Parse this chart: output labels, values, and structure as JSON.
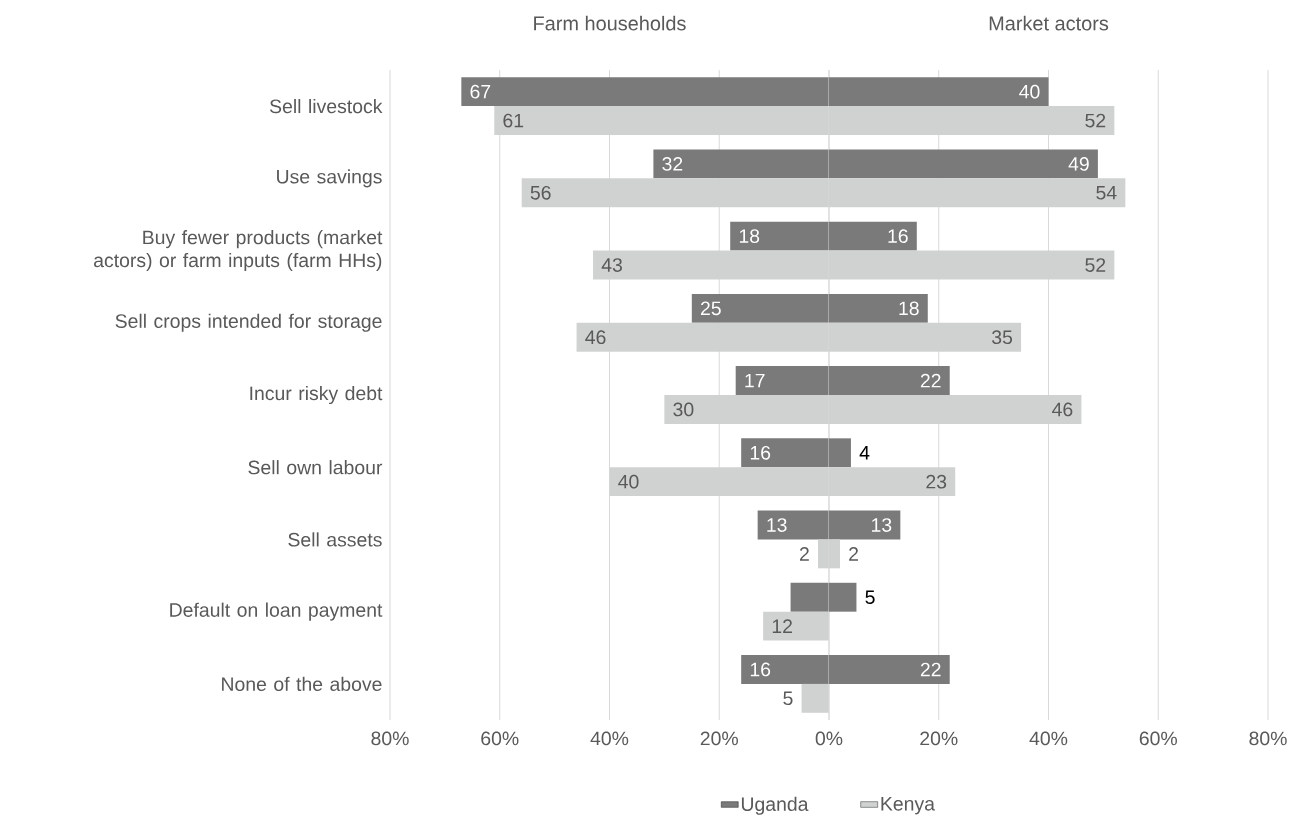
{
  "chart_data": [
    {
      "type": "bar",
      "orientation": "horizontal",
      "title": "Farm households",
      "categories": [
        "Sell livestock",
        "Use savings",
        "Buy fewer products (market actors) or farm inputs (farm HHs)",
        "Sell crops intended for storage",
        "Incur risky debt",
        "Sell own labour",
        "Sell assets",
        "Default on loan payment",
        "None of the above"
      ],
      "series": [
        {
          "color": "#7a7a7a",
          "values": [
            67,
            32,
            18,
            25,
            17,
            16,
            13,
            7,
            16
          ],
          "value_labels": [
            "67",
            "32",
            "18",
            "25",
            "17",
            "16",
            "13",
            null,
            "16"
          ]
        },
        {
          "color": "#d0d2d2",
          "values": [
            61,
            56,
            43,
            46,
            30,
            40,
            2,
            12,
            5
          ],
          "value_labels": [
            "61",
            "56",
            "43",
            "46",
            "30",
            "40",
            "2",
            "12",
            "5"
          ]
        }
      ],
      "xlim": [
        80,
        0
      ],
      "xticks": [
        {
          "value": 80,
          "label": "80%"
        },
        {
          "value": 60,
          "label": "60%"
        },
        {
          "value": 40,
          "label": "40%"
        },
        {
          "value": 20,
          "label": "20%"
        },
        {
          "value": 0,
          "label": "0%"
        }
      ],
      "grid": "x"
    },
    {
      "type": "bar",
      "orientation": "horizontal",
      "title": "Market actors",
      "series": [
        {
          "name": "Uganda",
          "color": "#7a7a7a",
          "values": [
            40,
            49,
            16,
            18,
            22,
            4,
            13,
            5,
            22
          ],
          "value_labels": [
            "40",
            "49",
            "16",
            "18",
            "22",
            "4",
            "13",
            "5",
            "22"
          ]
        },
        {
          "name": "Kenya",
          "color": "#d0d2d2",
          "values": [
            52,
            54,
            52,
            35,
            46,
            23,
            2,
            null,
            null
          ],
          "value_labels": [
            "52",
            "54",
            "52",
            "35",
            "46",
            "23",
            "2",
            null,
            null
          ]
        }
      ],
      "xlim": [
        0,
        80
      ],
      "xticks": [
        {
          "value": 0,
          "label": null
        },
        {
          "value": 20,
          "label": "20%"
        },
        {
          "value": 40,
          "label": "40%"
        },
        {
          "value": 60,
          "label": "60%"
        },
        {
          "value": 80,
          "label": "80%"
        }
      ],
      "grid": "x",
      "legend": "bottom"
    }
  ]
}
